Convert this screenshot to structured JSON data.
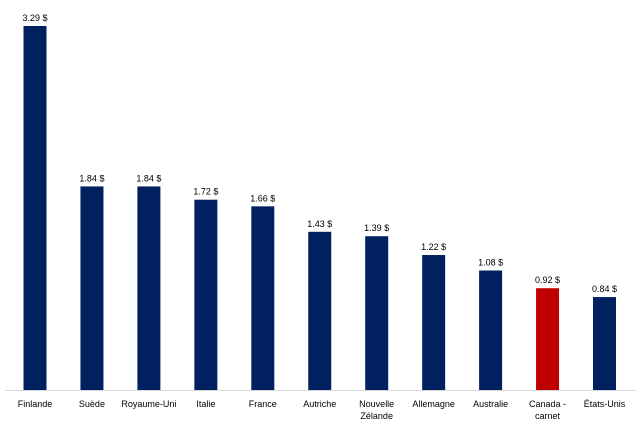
{
  "chart_data": {
    "type": "bar",
    "title": "",
    "xlabel": "",
    "ylabel": "",
    "ylim": [
      0,
      3.35
    ],
    "grid": false,
    "legend": "none",
    "categories": [
      [
        "Finlande"
      ],
      [
        "Suède"
      ],
      [
        "Royaume-Uni"
      ],
      [
        "Italie"
      ],
      [
        "France"
      ],
      [
        "Autriche"
      ],
      [
        "Nouvelle",
        "Zélande"
      ],
      [
        "Allemagne"
      ],
      [
        "Australie"
      ],
      [
        "Canada -",
        "carnet"
      ],
      [
        "États-Unis"
      ]
    ],
    "values": [
      3.29,
      1.84,
      1.84,
      1.72,
      1.66,
      1.43,
      1.39,
      1.22,
      1.08,
      0.92,
      0.84
    ],
    "data_labels": [
      "3.29 $",
      "1.84 $",
      "1.84 $",
      "1.72 $",
      "1.66 $",
      "1.43 $",
      "1.39 $",
      "1.22 $",
      "1.08 $",
      "0.92 $",
      "0.84 $"
    ],
    "highlight_index": 9,
    "colors": {
      "bar": "#002060",
      "highlight": "#c00000",
      "axis": "#d9d9d9",
      "text": "#000000"
    }
  }
}
